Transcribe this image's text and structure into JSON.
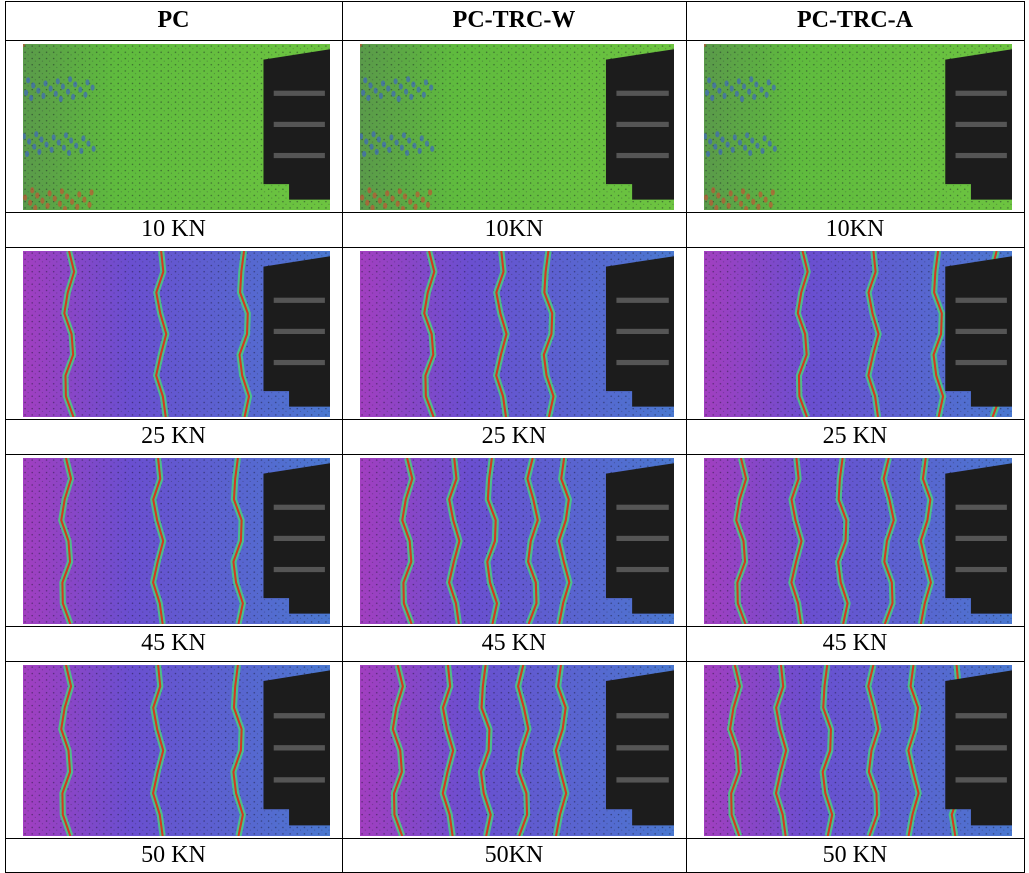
{
  "table": {
    "headers": [
      "PC",
      "PC-TRC-W",
      "PC-TRC-A"
    ],
    "rows": [
      {
        "labels": [
          "10 KN",
          "10KN",
          "10KN"
        ]
      },
      {
        "labels": [
          "25 KN",
          "25 KN",
          "25 KN"
        ]
      },
      {
        "labels": [
          "45 KN",
          "45 KN",
          "45 KN"
        ]
      },
      {
        "labels": [
          "50 KN",
          "50KN",
          "50 KN"
        ]
      }
    ]
  }
}
